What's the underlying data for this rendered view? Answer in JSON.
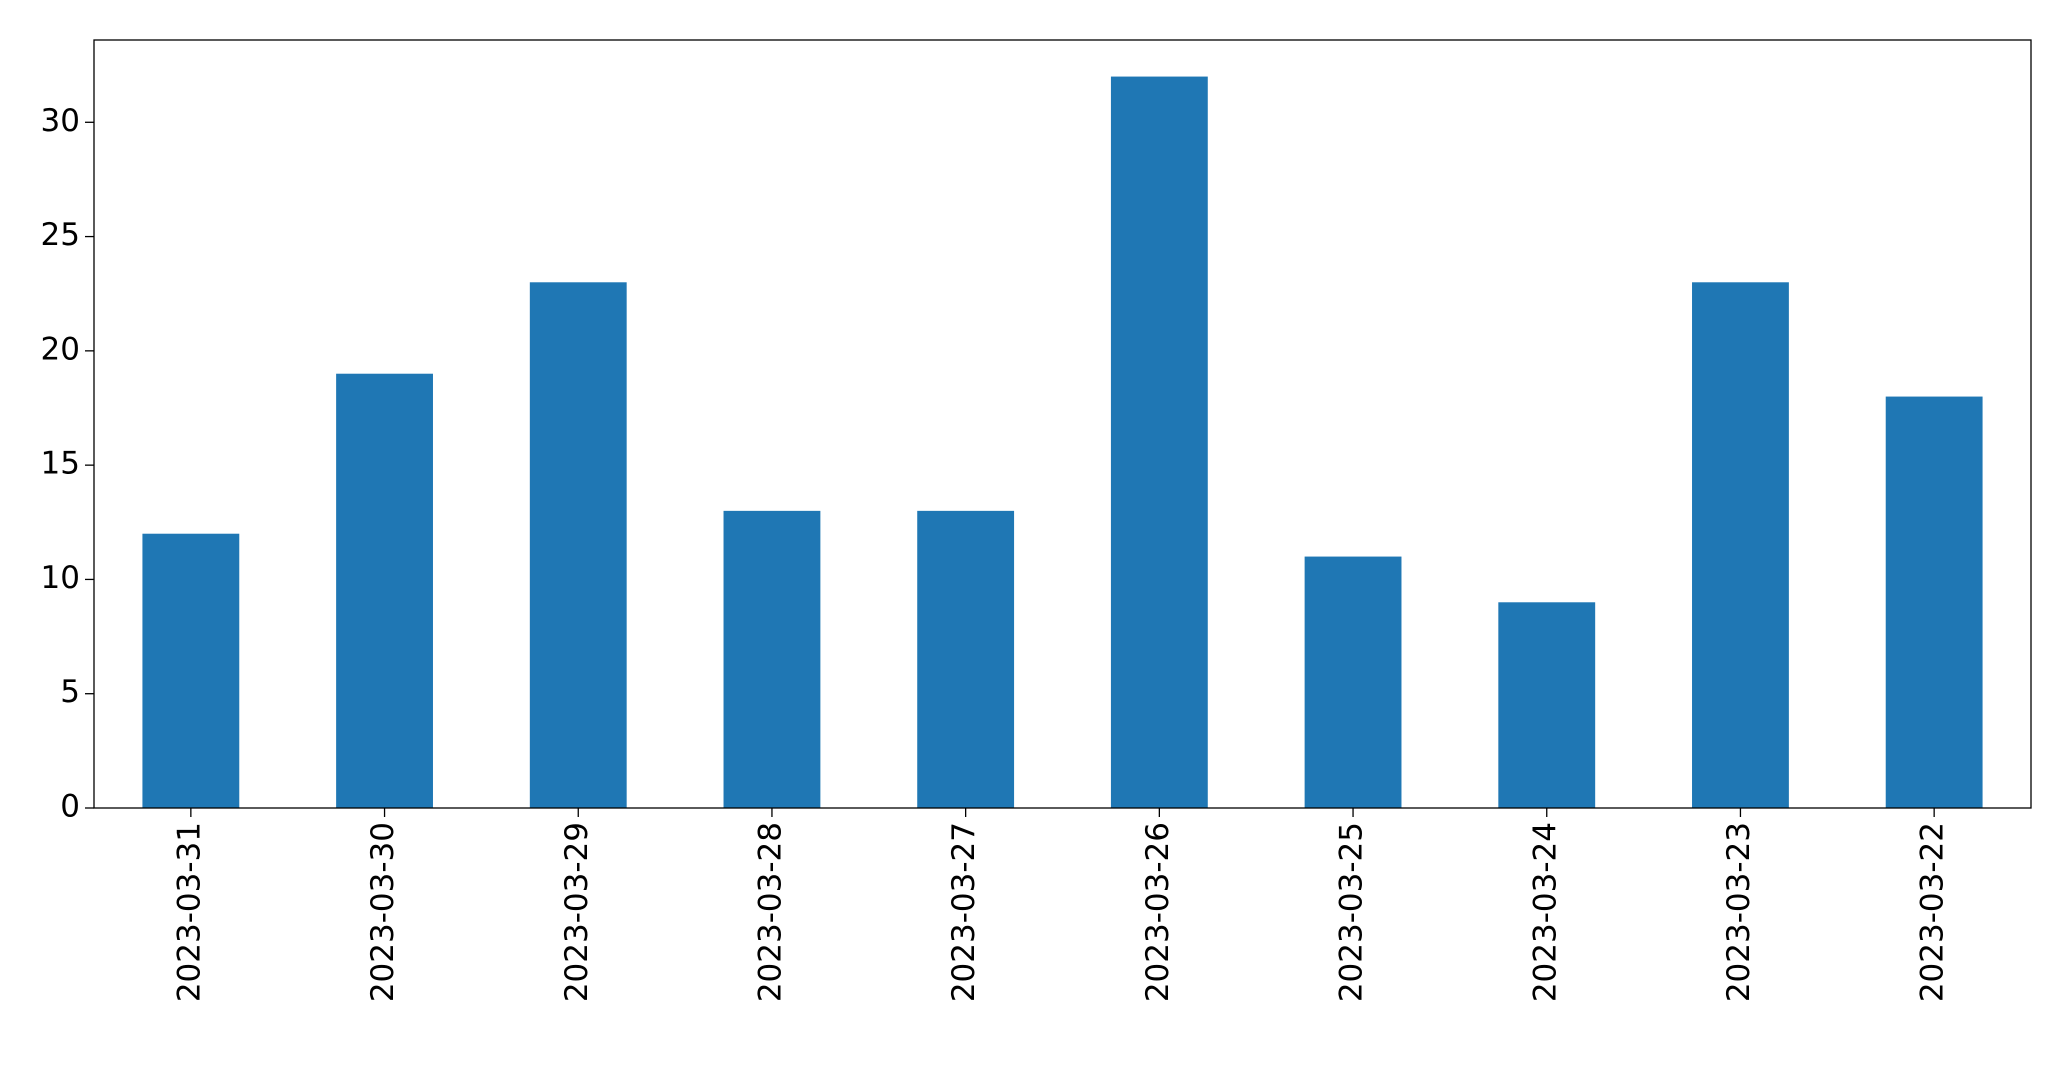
{
  "chart_data": {
    "type": "bar",
    "categories": [
      "2023-03-31",
      "2023-03-30",
      "2023-03-29",
      "2023-03-28",
      "2023-03-27",
      "2023-03-26",
      "2023-03-25",
      "2023-03-24",
      "2023-03-23",
      "2023-03-22"
    ],
    "values": [
      12,
      19,
      23,
      13,
      13,
      32,
      11,
      9,
      23,
      18
    ],
    "color": "#1f77b4",
    "ylim": [
      0,
      33.6
    ],
    "yticks": [
      0,
      5,
      10,
      15,
      20,
      25,
      30
    ],
    "grid": false
  }
}
